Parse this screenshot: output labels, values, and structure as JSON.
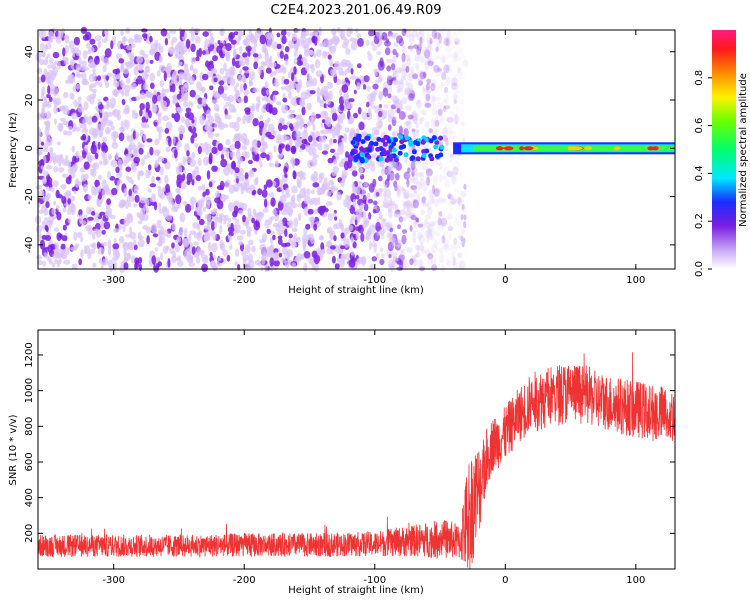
{
  "title": "C2E4.2023.201.06.49.R09",
  "colors": {
    "axis": "#000000",
    "snr_line": "#ee3333",
    "spectro_purple": "#7a1fe0",
    "spectro_light": "#d9c2f7"
  },
  "chart_data": [
    {
      "type": "heatmap",
      "name": "spectrogram",
      "xlabel": "Height of straight line (km)",
      "ylabel": "Frequency (Hz)",
      "xlim": [
        -358,
        130
      ],
      "ylim": [
        -50,
        49
      ],
      "xticks": [
        "-300",
        "-200",
        "-100",
        "0",
        "100"
      ],
      "xtick_values": [
        -300,
        -200,
        -100,
        0,
        100
      ],
      "yticks": [
        "-40",
        "-20",
        "0",
        "20",
        "40"
      ],
      "ytick_values": [
        -40,
        -20,
        0,
        20,
        40
      ],
      "noise_region_km": [
        -358,
        -40
      ],
      "signal_frequency_hz": 0,
      "signal_start_km": -40,
      "colorbar": {
        "label": "Normalized spectral amplitude",
        "range": [
          0.0,
          1.0
        ],
        "ticks": [
          "0.0",
          "0.2",
          "0.4",
          "0.6",
          "0.8"
        ],
        "tick_values": [
          0.0,
          0.2,
          0.4,
          0.6,
          0.8
        ],
        "colormap": "hsv"
      }
    },
    {
      "type": "line",
      "name": "snr",
      "xlabel": "Height of straight line (km)",
      "ylabel": "SNR (10 * v/v)",
      "xlim": [
        -358,
        130
      ],
      "ylim": [
        0,
        1340
      ],
      "xticks": [
        "-300",
        "-200",
        "-100",
        "0",
        "100"
      ],
      "xtick_values": [
        -300,
        -200,
        -100,
        0,
        100
      ],
      "yticks": [
        "200",
        "400",
        "600",
        "800",
        "1000",
        "1200"
      ],
      "ytick_values": [
        200,
        400,
        600,
        800,
        1000,
        1200
      ],
      "series": [
        {
          "x": [
            -358,
            -300,
            -250,
            -200,
            -150,
            -100,
            -70,
            -45,
            -35,
            -28,
            -20,
            -15,
            -10,
            -5,
            0,
            10,
            20,
            30,
            40,
            50,
            60,
            70,
            80,
            90,
            100,
            110,
            120,
            130
          ],
          "y": [
            130,
            130,
            130,
            135,
            135,
            140,
            160,
            170,
            150,
            300,
            450,
            600,
            700,
            720,
            760,
            860,
            930,
            960,
            980,
            990,
            980,
            950,
            930,
            910,
            900,
            880,
            870,
            860
          ],
          "spread": [
            90,
            90,
            90,
            95,
            95,
            100,
            130,
            160,
            140,
            500,
            380,
            260,
            220,
            220,
            220,
            220,
            240,
            250,
            250,
            250,
            240,
            230,
            230,
            230,
            230,
            230,
            230,
            230
          ]
        }
      ]
    }
  ]
}
